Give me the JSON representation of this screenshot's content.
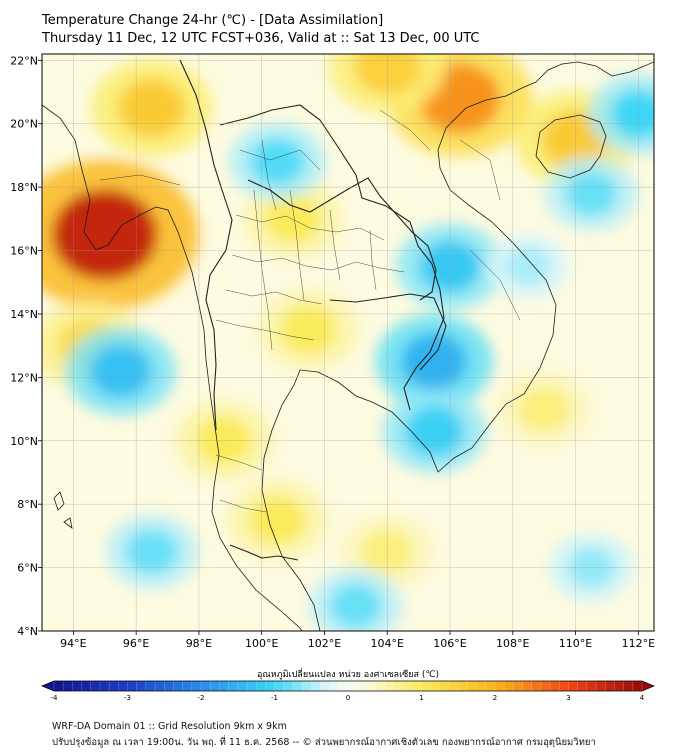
{
  "header": {
    "title_line1": "Temperature Change 24-hr (℃) - [Data Assimilation]",
    "title_line2": "Thursday 11 Dec, 12 UTC FCST+036, Valid at :: Sat 13 Dec, 00 UTC"
  },
  "map": {
    "lon_range": [
      93,
      112.5
    ],
    "lat_range": [
      4,
      22.2
    ],
    "lon_ticks": [
      "94°E",
      "96°E",
      "98°E",
      "100°E",
      "102°E",
      "104°E",
      "106°E",
      "108°E",
      "110°E",
      "112°E"
    ],
    "lat_ticks": [
      "22°N",
      "20°N",
      "18°N",
      "16°N",
      "14°N",
      "12°N",
      "10°N",
      "8°N",
      "6°N",
      "4°N"
    ]
  },
  "colorbar": {
    "label": "อุณหภูมิเปลี่ยนแปลง หน่วย องศาเซลเซียส (℃)",
    "min": -4,
    "max": 4,
    "tick_labels": [
      "-4",
      "-3",
      "-2",
      "-1",
      "0",
      "1",
      "2",
      "3",
      "4"
    ]
  },
  "footer": {
    "line1": "WRF-DA Domain 01 :: Grid Resolution 9km x 9km",
    "line2": "ปรับปรุงข้อมูล ณ เวลา 19:00น. วัน พฤ. ที่ 11 ธ.ค. 2568 -- © ส่วนพยากรณ์อากาศเชิงตัวเลข กองพยากรณ์อากาศ กรมอุตุนิยมวิทยา"
  },
  "field_features": [
    {
      "name": "hot-spot-south-myanmar",
      "lon": 95.0,
      "lat": 16.5,
      "value": 3.5
    },
    {
      "name": "warm-north-vietnam",
      "lon": 106.3,
      "lat": 20.8,
      "value": 2.3
    },
    {
      "name": "warm-north-myanmar",
      "lon": 96.5,
      "lat": 20.5,
      "value": 1.6
    },
    {
      "name": "warm-hainan",
      "lon": 110.0,
      "lat": 19.5,
      "value": 1.6
    },
    {
      "name": "warm-north-edge",
      "lon": 104.0,
      "lat": 21.8,
      "value": 1.5
    },
    {
      "name": "warm-lower-myanmar",
      "lon": 94.5,
      "lat": 13.0,
      "value": 1.3
    },
    {
      "name": "warm-central-thailand",
      "lon": 101.5,
      "lat": 13.5,
      "value": 1.0
    },
    {
      "name": "warm-upper-thailand",
      "lon": 101.0,
      "lat": 17.0,
      "value": 1.0
    },
    {
      "name": "warm-southern-peninsula",
      "lon": 100.5,
      "lat": 7.5,
      "value": 1.0
    },
    {
      "name": "warm-south-central-sea",
      "lon": 104.0,
      "lat": 6.5,
      "value": 0.8
    },
    {
      "name": "warm-south-china-sea",
      "lon": 109.0,
      "lat": 11.0,
      "value": 0.8
    },
    {
      "name": "warm-isthmus",
      "lon": 98.8,
      "lat": 10.0,
      "value": 1.0
    },
    {
      "name": "cool-cambodia",
      "lon": 105.5,
      "lat": 12.5,
      "value": -1.5
    },
    {
      "name": "cool-laos",
      "lon": 106.0,
      "lat": 15.5,
      "value": -1.2
    },
    {
      "name": "cool-mekong-delta",
      "lon": 105.5,
      "lat": 10.3,
      "value": -1.1
    },
    {
      "name": "cool-andaman",
      "lon": 95.5,
      "lat": 12.2,
      "value": -1.3
    },
    {
      "name": "cool-north-thailand",
      "lon": 100.5,
      "lat": 18.8,
      "value": -0.9
    },
    {
      "name": "cool-northeast-corner",
      "lon": 112.0,
      "lat": 20.3,
      "value": -1.0
    },
    {
      "name": "cool-gulf-of-tonkin",
      "lon": 110.5,
      "lat": 17.8,
      "value": -0.8
    },
    {
      "name": "cool-south-andaman",
      "lon": 96.5,
      "lat": 6.5,
      "value": -0.8
    },
    {
      "name": "cool-south-sea",
      "lon": 103.0,
      "lat": 4.8,
      "value": -0.8
    },
    {
      "name": "cool-southeast",
      "lon": 110.5,
      "lat": 6.0,
      "value": -0.6
    },
    {
      "name": "cool-vietnam-coast",
      "lon": 108.5,
      "lat": 15.5,
      "value": -0.5
    }
  ]
}
